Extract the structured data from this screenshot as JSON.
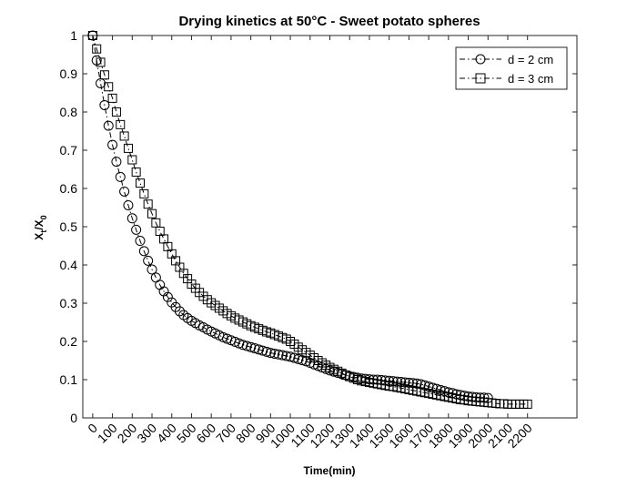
{
  "chart_data": {
    "type": "line",
    "title": "Drying kinetics at 50°C - Sweet potato spheres",
    "xlabel": "Time(min)",
    "ylabel": {
      "main": "X",
      "sub1": "t",
      "sep": "/X",
      "sub2": "0"
    },
    "xlim": [
      -50,
      2450
    ],
    "ylim": [
      0,
      1
    ],
    "x_ticks": [
      0,
      100,
      200,
      300,
      400,
      500,
      600,
      700,
      800,
      900,
      1000,
      1100,
      1200,
      1300,
      1400,
      1500,
      1600,
      1700,
      1800,
      1900,
      2000,
      2100,
      2200
    ],
    "y_ticks": [
      "0",
      "0.1",
      "0.2",
      "0.3",
      "0.4",
      "0.5",
      "0.6",
      "0.7",
      "0.8",
      "0.9",
      "1"
    ],
    "grid": false,
    "legend_position": "top-right",
    "series": [
      {
        "name": "d = 2 cm",
        "marker": "circle",
        "line_style": "dash-dot",
        "color": "#000000",
        "sample_interval_min": 20,
        "x": [
          0,
          20,
          40,
          60,
          80,
          100,
          120,
          140,
          160,
          180,
          200,
          220,
          240,
          260,
          280,
          300,
          320,
          340,
          360,
          380,
          400,
          420,
          440,
          460,
          480,
          500,
          520,
          540,
          560,
          580,
          600,
          620,
          640,
          660,
          680,
          700,
          720,
          740,
          760,
          780,
          800,
          820,
          840,
          860,
          880,
          900,
          920,
          940,
          960,
          980,
          1000,
          1020,
          1040,
          1060,
          1080,
          1100,
          1120,
          1140,
          1160,
          1180,
          1200,
          1220,
          1240,
          1260,
          1280,
          1300,
          1320,
          1340,
          1360,
          1380,
          1400,
          1420,
          1440,
          1460,
          1480,
          1500,
          1520,
          1540,
          1560,
          1580,
          1600,
          1620,
          1640,
          1660,
          1680,
          1700,
          1720,
          1740,
          1760,
          1780,
          1800,
          1820,
          1840,
          1860,
          1880,
          1900,
          1920,
          1940,
          1960,
          1980,
          2000
        ],
        "y": [
          1.0,
          0.935,
          0.875,
          0.818,
          0.764,
          0.714,
          0.67,
          0.63,
          0.592,
          0.556,
          0.522,
          0.492,
          0.463,
          0.436,
          0.411,
          0.388,
          0.367,
          0.348,
          0.331,
          0.316,
          0.302,
          0.29,
          0.279,
          0.269,
          0.261,
          0.254,
          0.248,
          0.242,
          0.237,
          0.231,
          0.226,
          0.221,
          0.216,
          0.211,
          0.207,
          0.203,
          0.199,
          0.195,
          0.191,
          0.188,
          0.185,
          0.182,
          0.179,
          0.176,
          0.173,
          0.17,
          0.168,
          0.166,
          0.164,
          0.162,
          0.16,
          0.157,
          0.154,
          0.151,
          0.148,
          0.144,
          0.14,
          0.136,
          0.132,
          0.128,
          0.124,
          0.121,
          0.118,
          0.115,
          0.112,
          0.109,
          0.107,
          0.105,
          0.103,
          0.102,
          0.101,
          0.1,
          0.1,
          0.099,
          0.098,
          0.097,
          0.096,
          0.095,
          0.094,
          0.093,
          0.092,
          0.091,
          0.09,
          0.088,
          0.085,
          0.082,
          0.079,
          0.076,
          0.073,
          0.07,
          0.067,
          0.065,
          0.062,
          0.06,
          0.058,
          0.056,
          0.055,
          0.054,
          0.053,
          0.053,
          0.052
        ]
      },
      {
        "name": "d = 3 cm",
        "marker": "square",
        "line_style": "dash-dot",
        "color": "#000000",
        "sample_interval_min": 20,
        "x": [
          0,
          20,
          40,
          60,
          80,
          100,
          120,
          140,
          160,
          180,
          200,
          220,
          240,
          260,
          280,
          300,
          320,
          340,
          360,
          380,
          400,
          420,
          440,
          460,
          480,
          500,
          520,
          540,
          560,
          580,
          600,
          620,
          640,
          660,
          680,
          700,
          720,
          740,
          760,
          780,
          800,
          820,
          840,
          860,
          880,
          900,
          920,
          940,
          960,
          980,
          1000,
          1020,
          1040,
          1060,
          1080,
          1100,
          1120,
          1140,
          1160,
          1180,
          1200,
          1220,
          1240,
          1260,
          1280,
          1300,
          1320,
          1340,
          1360,
          1380,
          1400,
          1420,
          1440,
          1460,
          1480,
          1500,
          1520,
          1540,
          1560,
          1580,
          1600,
          1620,
          1640,
          1660,
          1680,
          1700,
          1720,
          1740,
          1760,
          1780,
          1800,
          1820,
          1840,
          1860,
          1880,
          1900,
          1920,
          1940,
          1960,
          1980,
          2000,
          2020,
          2040,
          2060,
          2080,
          2100,
          2120,
          2140,
          2160,
          2180,
          2200
        ],
        "y": [
          1.0,
          0.965,
          0.93,
          0.897,
          0.866,
          0.836,
          0.8,
          0.767,
          0.737,
          0.705,
          0.675,
          0.643,
          0.614,
          0.586,
          0.559,
          0.534,
          0.51,
          0.488,
          0.468,
          0.448,
          0.429,
          0.411,
          0.394,
          0.378,
          0.364,
          0.35,
          0.339,
          0.328,
          0.318,
          0.309,
          0.301,
          0.294,
          0.287,
          0.28,
          0.273,
          0.267,
          0.261,
          0.256,
          0.251,
          0.246,
          0.241,
          0.237,
          0.233,
          0.229,
          0.225,
          0.222,
          0.218,
          0.214,
          0.21,
          0.206,
          0.2,
          0.193,
          0.185,
          0.178,
          0.171,
          0.164,
          0.157,
          0.15,
          0.144,
          0.138,
          0.132,
          0.127,
          0.122,
          0.117,
          0.112,
          0.108,
          0.104,
          0.1,
          0.097,
          0.095,
          0.093,
          0.091,
          0.089,
          0.087,
          0.085,
          0.083,
          0.082,
          0.08,
          0.078,
          0.076,
          0.074,
          0.072,
          0.07,
          0.068,
          0.066,
          0.064,
          0.062,
          0.06,
          0.058,
          0.056,
          0.054,
          0.052,
          0.05,
          0.048,
          0.047,
          0.045,
          0.044,
          0.043,
          0.042,
          0.041,
          0.04,
          0.039,
          0.038,
          0.037,
          0.037,
          0.036,
          0.036,
          0.036,
          0.036,
          0.036,
          0.036
        ]
      }
    ]
  }
}
